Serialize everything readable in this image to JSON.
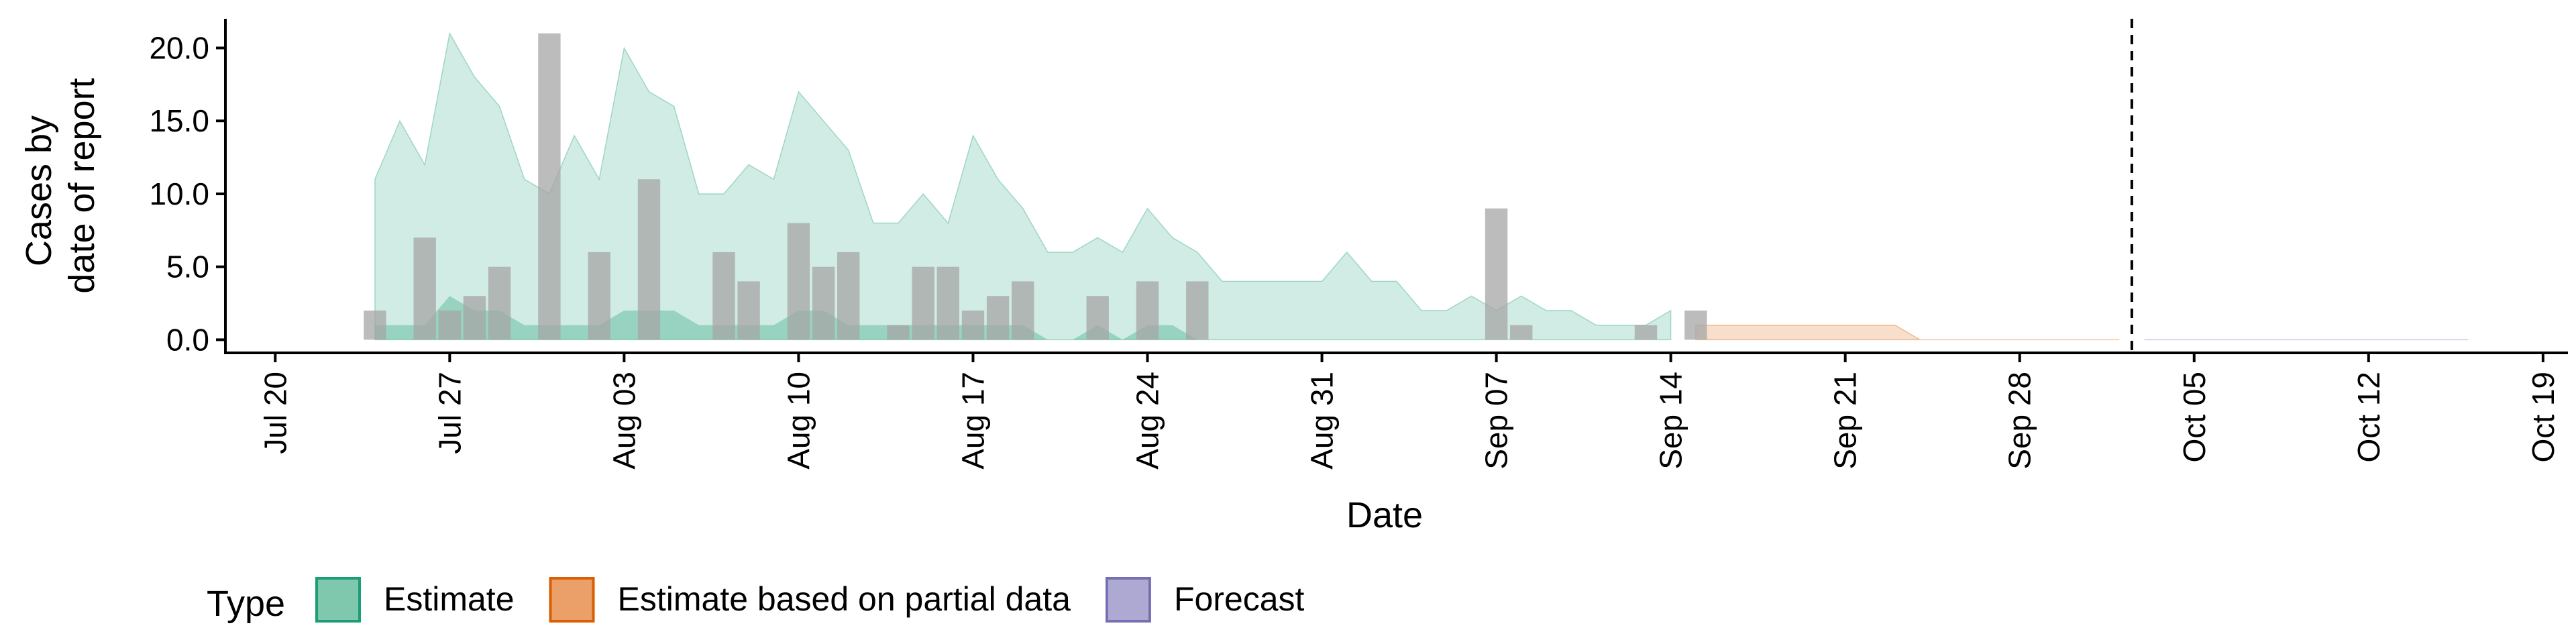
{
  "chart_data": {
    "type": "area",
    "xlabel": "Date",
    "ylabel_lines": [
      "Cases by",
      "date of report"
    ],
    "xlim": [
      "2020-07-18",
      "2020-10-20"
    ],
    "ylim": [
      -0.9,
      22
    ],
    "x_ticks": [
      {
        "date": "2020-07-20",
        "label": "Jul 20"
      },
      {
        "date": "2020-07-27",
        "label": "Jul 27"
      },
      {
        "date": "2020-08-03",
        "label": "Aug 03"
      },
      {
        "date": "2020-08-10",
        "label": "Aug 10"
      },
      {
        "date": "2020-08-17",
        "label": "Aug 17"
      },
      {
        "date": "2020-08-24",
        "label": "Aug 24"
      },
      {
        "date": "2020-08-31",
        "label": "Aug 31"
      },
      {
        "date": "2020-09-07",
        "label": "Sep 07"
      },
      {
        "date": "2020-09-14",
        "label": "Sep 14"
      },
      {
        "date": "2020-09-21",
        "label": "Sep 21"
      },
      {
        "date": "2020-09-28",
        "label": "Sep 28"
      },
      {
        "date": "2020-10-05",
        "label": "Oct 05"
      },
      {
        "date": "2020-10-12",
        "label": "Oct 12"
      },
      {
        "date": "2020-10-19",
        "label": "Oct 19"
      }
    ],
    "y_ticks": [
      {
        "value": 0,
        "label": "0.0"
      },
      {
        "value": 5,
        "label": "5.0"
      },
      {
        "value": 10,
        "label": "10.0"
      },
      {
        "value": 15,
        "label": "15.0"
      },
      {
        "value": 20,
        "label": "20.0"
      }
    ],
    "reported_cases": {
      "dates": [
        "2020-07-24",
        "2020-07-25",
        "2020-07-26",
        "2020-07-27",
        "2020-07-28",
        "2020-07-29",
        "2020-07-30",
        "2020-07-31",
        "2020-08-01",
        "2020-08-02",
        "2020-08-03",
        "2020-08-04",
        "2020-08-05",
        "2020-08-06",
        "2020-08-07",
        "2020-08-08",
        "2020-08-09",
        "2020-08-10",
        "2020-08-11",
        "2020-08-12",
        "2020-08-13",
        "2020-08-14",
        "2020-08-15",
        "2020-08-16",
        "2020-08-17",
        "2020-08-18",
        "2020-08-19",
        "2020-08-20",
        "2020-08-21",
        "2020-08-22",
        "2020-08-23",
        "2020-08-24",
        "2020-08-25",
        "2020-08-26",
        "2020-08-27",
        "2020-08-28",
        "2020-08-29",
        "2020-08-30",
        "2020-08-31",
        "2020-09-01",
        "2020-09-02",
        "2020-09-03",
        "2020-09-04",
        "2020-09-05",
        "2020-09-06",
        "2020-09-07",
        "2020-09-08",
        "2020-09-09",
        "2020-09-10",
        "2020-09-11",
        "2020-09-12",
        "2020-09-13",
        "2020-09-14",
        "2020-09-15"
      ],
      "values": [
        2,
        0,
        7,
        2,
        3,
        5,
        0,
        21,
        0,
        6,
        0,
        11,
        0,
        0,
        6,
        4,
        0,
        8,
        5,
        6,
        0,
        1,
        5,
        5,
        2,
        3,
        4,
        0,
        0,
        3,
        0,
        4,
        0,
        4,
        0,
        0,
        0,
        0,
        0,
        0,
        0,
        0,
        0,
        0,
        0,
        9,
        1,
        0,
        0,
        0,
        0,
        1,
        0,
        2
      ]
    },
    "series": [
      {
        "type": "Estimate",
        "color": "#1b9e77",
        "fill_opacity": 0.2,
        "dates": [
          "2020-07-24",
          "2020-07-25",
          "2020-07-26",
          "2020-07-27",
          "2020-07-28",
          "2020-07-29",
          "2020-07-30",
          "2020-07-31",
          "2020-08-01",
          "2020-08-02",
          "2020-08-03",
          "2020-08-04",
          "2020-08-05",
          "2020-08-06",
          "2020-08-07",
          "2020-08-08",
          "2020-08-09",
          "2020-08-10",
          "2020-08-11",
          "2020-08-12",
          "2020-08-13",
          "2020-08-14",
          "2020-08-15",
          "2020-08-16",
          "2020-08-17",
          "2020-08-18",
          "2020-08-19",
          "2020-08-20",
          "2020-08-21",
          "2020-08-22",
          "2020-08-23",
          "2020-08-24",
          "2020-08-25",
          "2020-08-26",
          "2020-08-27",
          "2020-08-28",
          "2020-08-29",
          "2020-08-30",
          "2020-08-31",
          "2020-09-01",
          "2020-09-02",
          "2020-09-03",
          "2020-09-04",
          "2020-09-05",
          "2020-09-06",
          "2020-09-07",
          "2020-09-08",
          "2020-09-09",
          "2020-09-10",
          "2020-09-11",
          "2020-09-12",
          "2020-09-13",
          "2020-09-14"
        ],
        "lower_outer": [
          0,
          0,
          0,
          0,
          0,
          0,
          0,
          0,
          0,
          0,
          0,
          0,
          0,
          0,
          0,
          0,
          0,
          0,
          0,
          0,
          0,
          0,
          0,
          0,
          0,
          0,
          0,
          0,
          0,
          0,
          0,
          0,
          0,
          0,
          0,
          0,
          0,
          0,
          0,
          0,
          0,
          0,
          0,
          0,
          0,
          0,
          0,
          0,
          0,
          0,
          0,
          0,
          0
        ],
        "upper_outer": [
          11,
          15,
          12,
          21,
          18,
          16,
          11,
          10,
          14,
          11,
          20,
          17,
          16,
          10,
          10,
          12,
          11,
          17,
          15,
          13,
          8,
          8,
          10,
          8,
          14,
          11,
          9,
          6,
          6,
          7,
          6,
          9,
          7,
          6,
          4,
          4,
          4,
          4,
          4,
          6,
          4,
          4,
          2,
          2,
          3,
          2,
          3,
          2,
          2,
          1,
          1,
          1,
          2
        ],
        "lower_inner": [
          0,
          0,
          0,
          0,
          0,
          0,
          0,
          0,
          0,
          0,
          0,
          0,
          0,
          0,
          0,
          0,
          0,
          0,
          0,
          0,
          0,
          0,
          0,
          0,
          0,
          0,
          0,
          0,
          0,
          0,
          0,
          0,
          0,
          0,
          0,
          0,
          0,
          0,
          0,
          0,
          0,
          0,
          0,
          0,
          0,
          0,
          0,
          0,
          0,
          0,
          0,
          0,
          0
        ],
        "upper_inner": [
          1,
          1,
          1,
          3,
          2,
          2,
          1,
          1,
          1,
          1,
          2,
          2,
          2,
          1,
          1,
          1,
          1,
          2,
          2,
          1,
          1,
          1,
          1,
          1,
          1,
          1,
          1,
          0,
          0,
          1,
          0,
          1,
          1,
          0,
          0,
          0,
          0,
          0,
          0,
          0,
          0,
          0,
          0,
          0,
          0,
          0,
          0,
          0,
          0,
          0,
          0,
          0,
          0
        ]
      },
      {
        "type": "Estimate based on partial data",
        "color": "#d95f02",
        "fill_opacity": 0.2,
        "dates": [
          "2020-09-15",
          "2020-09-16",
          "2020-09-17",
          "2020-09-18",
          "2020-09-19",
          "2020-09-20",
          "2020-09-21",
          "2020-09-22",
          "2020-09-23",
          "2020-09-24",
          "2020-09-25",
          "2020-09-26",
          "2020-09-27",
          "2020-09-28",
          "2020-09-29",
          "2020-09-30",
          "2020-10-01",
          "2020-10-02"
        ],
        "lower_outer": [
          0,
          0,
          0,
          0,
          0,
          0,
          0,
          0,
          0,
          0,
          0,
          0,
          0,
          0,
          0,
          0,
          0,
          0
        ],
        "upper_outer": [
          1,
          1,
          1,
          1,
          1,
          1,
          1,
          1,
          1,
          0,
          0,
          0,
          0,
          0,
          0,
          0,
          0,
          0
        ],
        "lower_inner": [
          0,
          0,
          0,
          0,
          0,
          0,
          0,
          0,
          0,
          0,
          0,
          0,
          0,
          0,
          0,
          0,
          0,
          0
        ],
        "upper_inner": [
          0,
          0,
          0,
          0,
          0,
          0,
          0,
          0,
          0,
          0,
          0,
          0,
          0,
          0,
          0,
          0,
          0,
          0
        ]
      },
      {
        "type": "Forecast",
        "color": "#7570b3",
        "fill_opacity": 0.2,
        "dates": [
          "2020-10-03",
          "2020-10-04",
          "2020-10-05",
          "2020-10-06",
          "2020-10-07",
          "2020-10-08",
          "2020-10-09",
          "2020-10-10",
          "2020-10-11",
          "2020-10-12",
          "2020-10-13",
          "2020-10-14",
          "2020-10-15",
          "2020-10-16"
        ],
        "lower_outer": [
          0,
          0,
          0,
          0,
          0,
          0,
          0,
          0,
          0,
          0,
          0,
          0,
          0,
          0
        ],
        "upper_outer": [
          0,
          0,
          0,
          0,
          0,
          0,
          0,
          0,
          0,
          0,
          0,
          0,
          0,
          0
        ],
        "lower_inner": [
          0,
          0,
          0,
          0,
          0,
          0,
          0,
          0,
          0,
          0,
          0,
          0,
          0,
          0
        ],
        "upper_inner": [
          0,
          0,
          0,
          0,
          0,
          0,
          0,
          0,
          0,
          0,
          0,
          0,
          0,
          0
        ]
      }
    ],
    "forecast_start": "2020-10-02",
    "legend": {
      "title": "Type",
      "position": "bottom",
      "items": [
        {
          "label": "Estimate",
          "fill": "#7fc7ad",
          "stroke": "#1b9e77"
        },
        {
          "label": "Estimate based on partial data",
          "fill": "#eca069",
          "stroke": "#d95f02"
        },
        {
          "label": "Forecast",
          "fill": "#ada9d3",
          "stroke": "#7570b3"
        }
      ]
    },
    "bar_color": "#a6a6a6",
    "grid": false
  }
}
